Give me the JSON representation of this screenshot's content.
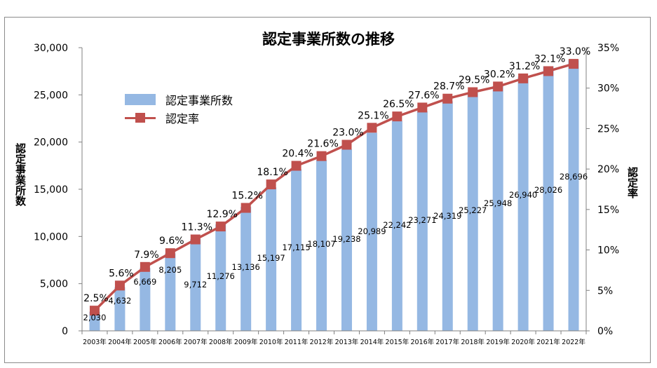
{
  "chart_data": {
    "type": "bar+line",
    "title": "認定事業所数の推移",
    "ylabel_left": "認定事業所数",
    "ylabel_right": "認定率",
    "categories": [
      "2003年",
      "2004年",
      "2005年",
      "2006年",
      "2007年",
      "2008年",
      "2009年",
      "2010年",
      "2011年",
      "2012年",
      "2013年",
      "2014年",
      "2015年",
      "2016年",
      "2017年",
      "2018年",
      "2019年",
      "2020年",
      "2021年",
      "2022年"
    ],
    "series": [
      {
        "name": "認定事業所数",
        "type": "bar",
        "axis": "left",
        "values": [
          2030,
          4632,
          6669,
          8205,
          9712,
          11276,
          13136,
          15197,
          17115,
          18107,
          19238,
          20989,
          22242,
          23271,
          24319,
          25227,
          25948,
          26940,
          28026,
          28696
        ],
        "labels": [
          "2,030",
          "4,632",
          "6,669",
          "8,205",
          "9,712",
          "11,276",
          "13,136",
          "15,197",
          "17,115",
          "18,107",
          "19,238",
          "20,989",
          "22,242",
          "23,271",
          "24,319",
          "25,227",
          "25,948",
          "26,940",
          "28,026",
          "28,696"
        ]
      },
      {
        "name": "認定率",
        "type": "line",
        "axis": "right",
        "values": [
          2.5,
          5.6,
          7.9,
          9.6,
          11.3,
          12.9,
          15.2,
          18.1,
          20.4,
          21.6,
          23.0,
          25.1,
          26.5,
          27.6,
          28.7,
          29.5,
          30.2,
          31.2,
          32.1,
          33.0
        ],
        "labels": [
          "2.5%",
          "5.6%",
          "7.9%",
          "9.6%",
          "11.3%",
          "12.9%",
          "15.2%",
          "18.1%",
          "20.4%",
          "21.6%",
          "23.0%",
          "25.1%",
          "26.5%",
          "27.6%",
          "28.7%",
          "29.5%",
          "30.2%",
          "31.2%",
          "32.1%",
          "33.0%"
        ]
      }
    ],
    "y_left": {
      "min": 0,
      "max": 30000,
      "ticks": [
        0,
        5000,
        10000,
        15000,
        20000,
        25000,
        30000
      ],
      "tick_labels": [
        "0",
        "5,000",
        "10,000",
        "15,000",
        "20,000",
        "25,000",
        "30,000"
      ]
    },
    "y_right": {
      "min": 0,
      "max": 35,
      "ticks": [
        0,
        5,
        10,
        15,
        20,
        25,
        30,
        35
      ],
      "tick_labels": [
        "0%",
        "5%",
        "10%",
        "15%",
        "20%",
        "25%",
        "30%",
        "35%"
      ]
    },
    "grid": false,
    "legend_position": "top-left",
    "colors": {
      "bar": "#95b8e3",
      "line": "#c0504d",
      "axis": "#808080"
    }
  }
}
